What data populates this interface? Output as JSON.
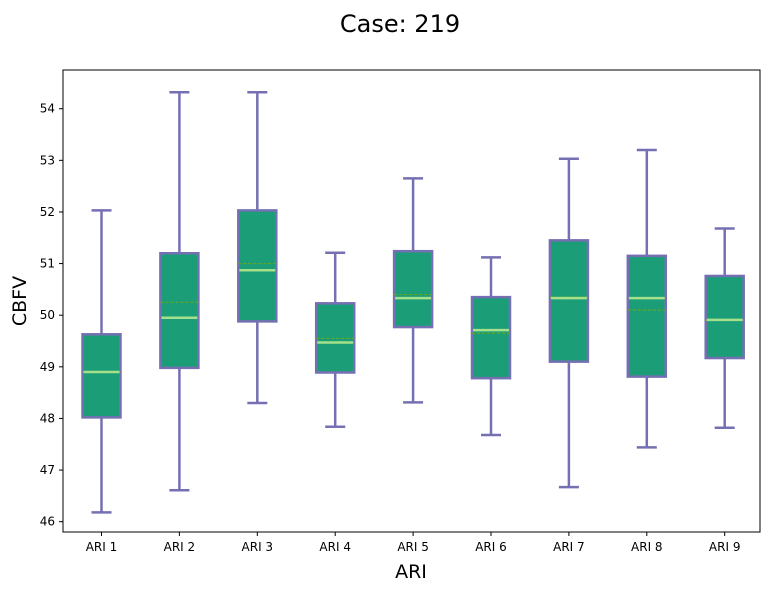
{
  "chart_data": {
    "type": "boxplot",
    "title": "Case: 219",
    "xlabel": "ARI",
    "ylabel": "CBFV",
    "ylim": [
      45.8,
      54.75
    ],
    "yticks": [
      46,
      47,
      48,
      49,
      50,
      51,
      52,
      53,
      54
    ],
    "grid": false,
    "categories": [
      "ARI 1",
      "ARI 2",
      "ARI 3",
      "ARI 4",
      "ARI 5",
      "ARI 6",
      "ARI 7",
      "ARI 8",
      "ARI 9"
    ],
    "boxes": [
      {
        "whisker_low": 46.18,
        "q1": 48.02,
        "median": 48.9,
        "mean": 48.9,
        "q3": 49.63,
        "whisker_high": 52.03
      },
      {
        "whisker_low": 46.61,
        "q1": 48.98,
        "median": 49.95,
        "mean": 50.25,
        "q3": 51.2,
        "whisker_high": 54.32
      },
      {
        "whisker_low": 48.3,
        "q1": 49.88,
        "median": 50.87,
        "mean": 51.0,
        "q3": 52.03,
        "whisker_high": 54.32
      },
      {
        "whisker_low": 47.84,
        "q1": 48.89,
        "median": 49.47,
        "mean": 49.55,
        "q3": 50.23,
        "whisker_high": 51.21
      },
      {
        "whisker_low": 48.31,
        "q1": 49.77,
        "median": 50.33,
        "mean": 50.4,
        "q3": 51.24,
        "whisker_high": 52.65
      },
      {
        "whisker_low": 47.68,
        "q1": 48.78,
        "median": 49.71,
        "mean": 49.65,
        "q3": 50.35,
        "whisker_high": 51.12
      },
      {
        "whisker_low": 46.67,
        "q1": 49.1,
        "median": 50.33,
        "mean": 50.35,
        "q3": 51.45,
        "whisker_high": 53.03
      },
      {
        "whisker_low": 47.44,
        "q1": 48.81,
        "median": 50.33,
        "mean": 50.1,
        "q3": 51.15,
        "whisker_high": 53.2
      },
      {
        "whisker_low": 47.82,
        "q1": 49.17,
        "median": 49.91,
        "mean": 49.9,
        "q3": 50.76,
        "whisker_high": 51.68
      }
    ],
    "colors": {
      "box_fill": "#1b9e77",
      "box_edge": "#7570b3",
      "whisker": "#7570b3",
      "median": "#a6e08a",
      "mean": "#66a61e"
    }
  }
}
